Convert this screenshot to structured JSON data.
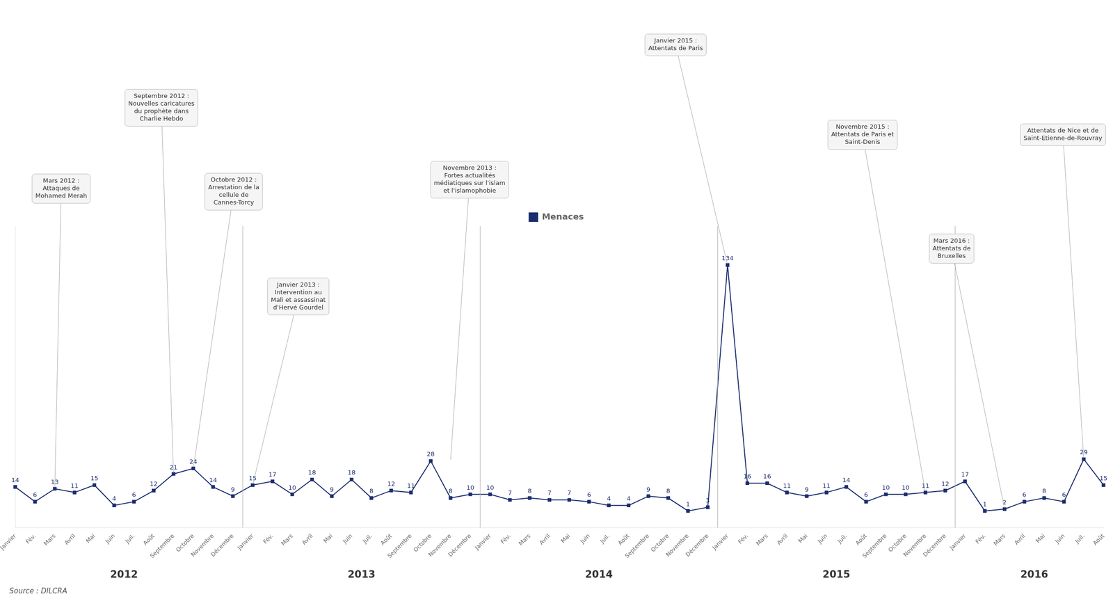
{
  "chart_data": {
    "type": "line",
    "categories": [
      "Janvier",
      "Fév.",
      "Mars",
      "Avril",
      "Mai",
      "Juin",
      "Juil.",
      "Août",
      "Septembre",
      "Octobre",
      "Novembre",
      "Décembre",
      "Janvier",
      "Fév.",
      "Mars",
      "Avril",
      "Mai",
      "Juin",
      "Juil.",
      "Août",
      "Septembre",
      "Octobre",
      "Novembre",
      "Décembre",
      "Janvier",
      "Fév.",
      "Mars",
      "Avril",
      "Mai",
      "Juin",
      "Juil.",
      "Août",
      "Septembre",
      "Octobre",
      "Novembre",
      "Décembre",
      "Janvier",
      "Fév.",
      "Mars",
      "Avril",
      "Mai",
      "Juin",
      "Juil.",
      "Août",
      "Septembre",
      "Octobre",
      "Novembre",
      "Décembre",
      "Janvier",
      "Fév.",
      "Mars",
      "Avril",
      "Mai",
      "Juin",
      "Juil.",
      "Août"
    ],
    "series": [
      {
        "name": "Menaces",
        "color": "#1C2D6E",
        "marker": "square",
        "line_style": "solid",
        "values": [
          14,
          6,
          13,
          11,
          15,
          4,
          6,
          12,
          21,
          24,
          14,
          9,
          15,
          17,
          10,
          18,
          9,
          18,
          8,
          12,
          11,
          28,
          8,
          10,
          10,
          7,
          8,
          7,
          7,
          6,
          4,
          4,
          9,
          8,
          1,
          3,
          134,
          16,
          16,
          11,
          9,
          11,
          14,
          6,
          10,
          10,
          11,
          12,
          17,
          1,
          2,
          6,
          8,
          6,
          29,
          15
        ]
      }
    ],
    "ylim": [
      -8,
      155
    ],
    "grid": false,
    "legend": "top",
    "data_labels": true,
    "tick_labels": "x",
    "annotations": [
      {
        "text": "Mars 2012 :\nAttaques de\nMohamed Merah",
        "x": 2,
        "y": 13
      },
      {
        "text": "Septembre 2012 :\nNouvelles caricatures\ndu prophète dans\nCharlie Hebdo",
        "x": 8,
        "y": 21
      },
      {
        "text": "Octobre 2012 :\nArrestation de la\ncellule de\nCannes-Torcy",
        "x": 9,
        "y": 24
      },
      {
        "text": "Janvier 2013 :\nIntervention au\nMali et assassinat\nd'Hervé Gourdel",
        "x": 12,
        "y": 15
      },
      {
        "text": "Novembre 2013 :\nFortes actualités\nmédiatiques sur l'islam\net l'islamophobie",
        "x": 22,
        "y": 28
      },
      {
        "text": "Janvier 2015 :\nAttentats de Paris",
        "x": 36,
        "y": 134
      },
      {
        "text": "Novembre 2015 :\nAttentats de Paris et\nSaint-Denis",
        "x": 46,
        "y": 11
      },
      {
        "text": "Mars 2016 :\nAttentats de\nBruxelles",
        "x": 50,
        "y": 2
      },
      {
        "text": "Attentats de Nice et de\nSaint-Etienne-de-Rouvray",
        "x": 54,
        "y": 29
      },
      {
        "text": "2012",
        "x": [
          0,
          11
        ]
      },
      {
        "text": "2013",
        "x": [
          12,
          23
        ]
      },
      {
        "text": "2014",
        "x": [
          24,
          35
        ]
      },
      {
        "text": "2015",
        "x": [
          36,
          47
        ]
      },
      {
        "text": "2016",
        "x": [
          48,
          55
        ]
      },
      {
        "text": "Source : DILCRA"
      }
    ]
  }
}
